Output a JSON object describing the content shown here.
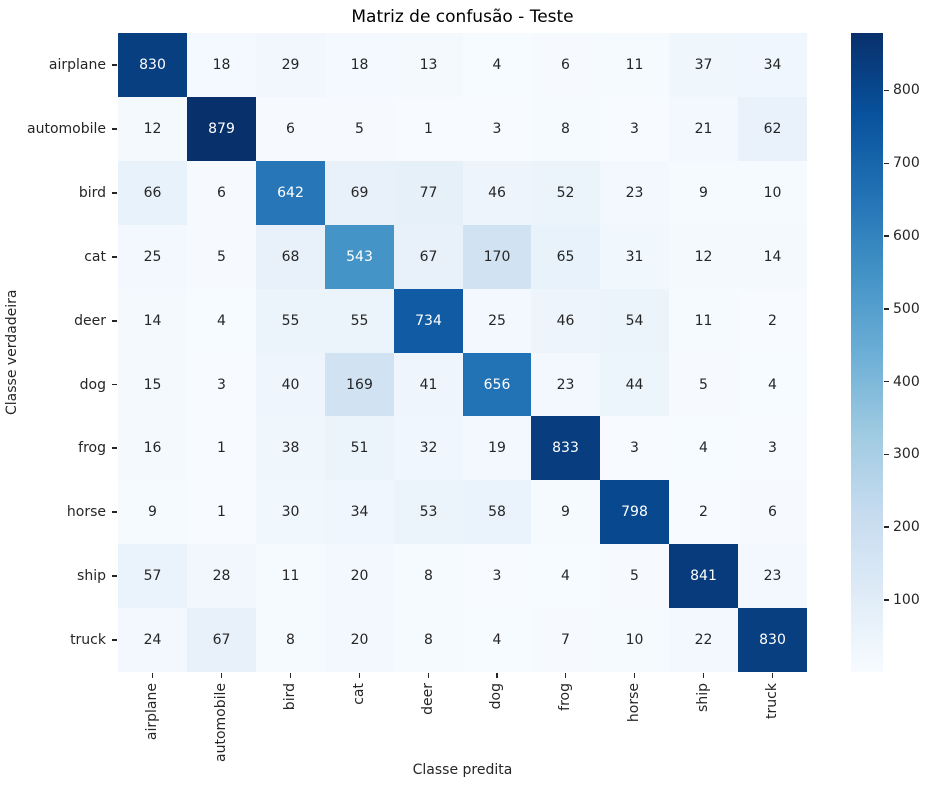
{
  "title": "Matriz de confusão - Teste",
  "chart_data": {
    "type": "heatmap",
    "title": "Matriz de confusão - Teste",
    "xlabel": "Classe predita",
    "ylabel": "Classe verdadeira",
    "categories": [
      "airplane",
      "automobile",
      "bird",
      "cat",
      "deer",
      "dog",
      "frog",
      "horse",
      "ship",
      "truck"
    ],
    "matrix": [
      [
        830,
        18,
        29,
        18,
        13,
        4,
        6,
        11,
        37,
        34
      ],
      [
        12,
        879,
        6,
        5,
        1,
        3,
        8,
        3,
        21,
        62
      ],
      [
        66,
        6,
        642,
        69,
        77,
        46,
        52,
        23,
        9,
        10
      ],
      [
        25,
        5,
        68,
        543,
        67,
        170,
        65,
        31,
        12,
        14
      ],
      [
        14,
        4,
        55,
        55,
        734,
        25,
        46,
        54,
        11,
        2
      ],
      [
        15,
        3,
        40,
        169,
        41,
        656,
        23,
        44,
        5,
        4
      ],
      [
        16,
        1,
        38,
        51,
        32,
        19,
        833,
        3,
        4,
        3
      ],
      [
        9,
        1,
        30,
        34,
        53,
        58,
        9,
        798,
        2,
        6
      ],
      [
        57,
        28,
        11,
        20,
        8,
        3,
        4,
        5,
        841,
        23
      ],
      [
        24,
        67,
        8,
        20,
        8,
        4,
        7,
        10,
        22,
        830
      ]
    ],
    "annotated": true,
    "vmin": 1,
    "vmax": 879,
    "colormap": "Blues",
    "colormap_stops": [
      "#f7fbff",
      "#deebf7",
      "#c6dbef",
      "#9ecae1",
      "#6baed6",
      "#4292c6",
      "#2171b5",
      "#08519c",
      "#08306b"
    ],
    "colorbar_ticks": [
      100,
      200,
      300,
      400,
      500,
      600,
      700,
      800
    ],
    "colorbar_position": "right",
    "grid": false,
    "annot_color_dark": "#262626",
    "annot_color_light": "#ffffff",
    "tick_color": "#262626",
    "background_color": "#ffffff"
  }
}
